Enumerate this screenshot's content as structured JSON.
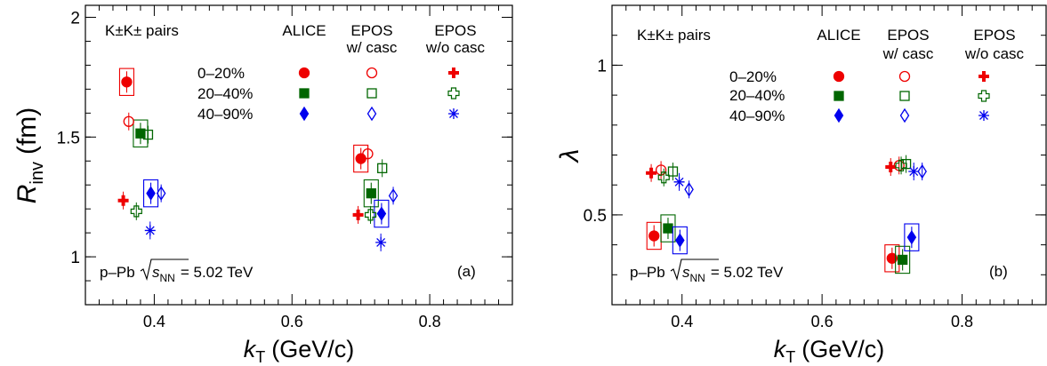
{
  "colors": {
    "c0_20": "#ee0000",
    "c20_40": "#006600",
    "c40_90": "#0000ee"
  },
  "legend": {
    "header": "K±K± pairs",
    "col_alice": "ALICE",
    "col_epos_w_1": "EPOS",
    "col_epos_w_2": "w/ casc",
    "col_epos_wo_1": "EPOS",
    "col_epos_wo_2": "w/o casc",
    "rows": [
      "0–20%",
      "20–40%",
      "40–90%"
    ]
  },
  "system_label": {
    "prefix": "p–Pb",
    "sqrt_s": "s",
    "subscript": "NN",
    "value": "= 5.02 TeV"
  },
  "chart_data": [
    {
      "type": "scatter",
      "panel_label": "(a)",
      "xlabel": {
        "main": "k",
        "sub": "T",
        "unit": "(GeV/c)"
      },
      "ylabel": {
        "main": "R",
        "sub": "inv",
        "unit": "(fm)"
      },
      "xlim": [
        0.3,
        0.92
      ],
      "ylim": [
        0.8,
        2.05
      ],
      "xticks": [
        0.4,
        0.6,
        0.8
      ],
      "xtick_labels": [
        "0.4",
        "0.6",
        "0.8"
      ],
      "yticks": [
        1.0,
        1.5,
        2.0
      ],
      "ytick_labels": [
        "1",
        "1.5",
        "2"
      ],
      "series": [
        {
          "name": "ALICE 0–20%",
          "x": [
            0.36,
            0.7
          ],
          "y": [
            1.73,
            1.41
          ]
        },
        {
          "name": "ALICE 20–40%",
          "x": [
            0.38,
            0.715
          ],
          "y": [
            1.515,
            1.265
          ]
        },
        {
          "name": "ALICE 40–90%",
          "x": [
            0.395,
            0.73
          ],
          "y": [
            1.265,
            1.18
          ]
        },
        {
          "name": "EPOS w/ casc 0–20%",
          "x": [
            0.363,
            0.71
          ],
          "y": [
            1.565,
            1.43
          ]
        },
        {
          "name": "EPOS w/ casc 20–40%",
          "x": [
            0.391,
            0.731
          ],
          "y": [
            1.51,
            1.37
          ]
        },
        {
          "name": "EPOS w/ casc 40–90%",
          "x": [
            0.41,
            0.747
          ],
          "y": [
            1.265,
            1.255
          ]
        },
        {
          "name": "EPOS w/o casc 0–20%",
          "x": [
            0.355,
            0.696
          ],
          "y": [
            1.235,
            1.175
          ]
        },
        {
          "name": "EPOS w/o casc 20–40%",
          "x": [
            0.374,
            0.714
          ],
          "y": [
            1.19,
            1.175
          ]
        },
        {
          "name": "EPOS w/o casc 40–90%",
          "x": [
            0.394,
            0.729
          ],
          "y": [
            1.11,
            1.06
          ]
        }
      ]
    },
    {
      "type": "scatter",
      "panel_label": "(b)",
      "xlabel": {
        "main": "k",
        "sub": "T",
        "unit": "(GeV/c)"
      },
      "ylabel": {
        "main": "λ",
        "sub": "",
        "unit": ""
      },
      "xlim": [
        0.3,
        0.92
      ],
      "ylim": [
        0.2,
        1.2
      ],
      "xticks": [
        0.4,
        0.6,
        0.8
      ],
      "xtick_labels": [
        "0.4",
        "0.6",
        "0.8"
      ],
      "yticks": [
        0.5,
        1.0
      ],
      "ytick_labels": [
        "0.5",
        "1"
      ],
      "series": [
        {
          "name": "ALICE 0–20%",
          "x": [
            0.36,
            0.7
          ],
          "y": [
            0.43,
            0.355
          ]
        },
        {
          "name": "ALICE 20–40%",
          "x": [
            0.38,
            0.715
          ],
          "y": [
            0.455,
            0.35
          ]
        },
        {
          "name": "ALICE 40–90%",
          "x": [
            0.397,
            0.728
          ],
          "y": [
            0.415,
            0.425
          ]
        },
        {
          "name": "EPOS w/ casc 0–20%",
          "x": [
            0.37,
            0.71
          ],
          "y": [
            0.65,
            0.665
          ]
        },
        {
          "name": "EPOS w/ casc 20–40%",
          "x": [
            0.387,
            0.72
          ],
          "y": [
            0.645,
            0.67
          ]
        },
        {
          "name": "EPOS w/ casc 40–90%",
          "x": [
            0.41,
            0.743
          ],
          "y": [
            0.585,
            0.645
          ]
        },
        {
          "name": "EPOS w/o casc 0–20%",
          "x": [
            0.356,
            0.698
          ],
          "y": [
            0.64,
            0.66
          ]
        },
        {
          "name": "EPOS w/o casc 20–40%",
          "x": [
            0.374,
            0.713
          ],
          "y": [
            0.625,
            0.665
          ]
        },
        {
          "name": "EPOS w/o casc 40–90%",
          "x": [
            0.396,
            0.731
          ],
          "y": [
            0.61,
            0.645
          ]
        }
      ]
    }
  ]
}
